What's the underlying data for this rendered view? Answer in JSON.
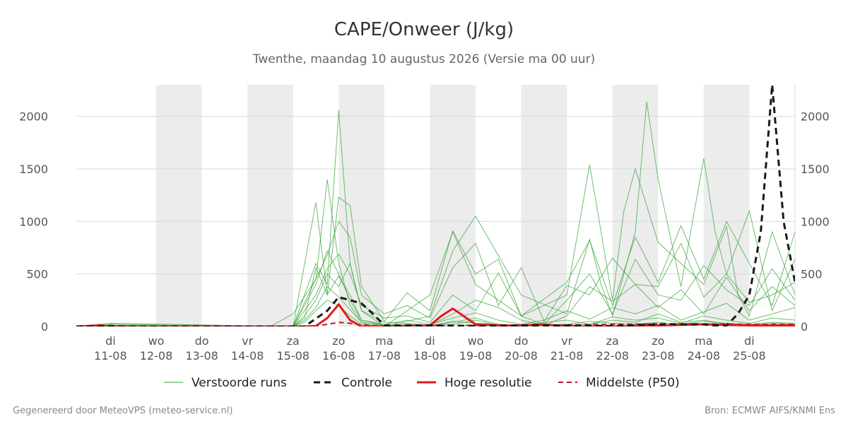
{
  "title": "CAPE/Onweer (J/kg)",
  "subtitle": "Twenthe, maandag 10 augustus 2026 (Versie ma 00 uur)",
  "footer_left": "Gegenereerd door MeteoVPS (meteo-service.nl)",
  "footer_right": "Bron: ECMWF AIFS/KNMI Ens",
  "colors": {
    "background": "#ffffff",
    "shade": "#ececec",
    "grid": "#d9d9d9",
    "ensemble": "#2ca02c",
    "control": "#1a1a1a",
    "hires": "#e31a1c",
    "median": "#b2182b"
  },
  "chart_data": {
    "type": "line",
    "title": "CAPE/Onweer (J/kg)",
    "xlabel": "",
    "ylabel": "",
    "x_unit": "days since 10-08 00 uur",
    "xlim": [
      -0.75,
      15.0
    ],
    "ylim": [
      0,
      2300
    ],
    "y_ticks": [
      0,
      500,
      1000,
      1500,
      2000
    ],
    "grid": true,
    "legend_position": "bottom",
    "x_ticks": [
      {
        "day": "di",
        "date": "11-08"
      },
      {
        "day": "wo",
        "date": "12-08"
      },
      {
        "day": "do",
        "date": "13-08"
      },
      {
        "day": "vr",
        "date": "14-08"
      },
      {
        "day": "za",
        "date": "15-08"
      },
      {
        "day": "zo",
        "date": "16-08"
      },
      {
        "day": "ma",
        "date": "17-08"
      },
      {
        "day": "di",
        "date": "18-08"
      },
      {
        "day": "wo",
        "date": "19-08"
      },
      {
        "day": "do",
        "date": "20-08"
      },
      {
        "day": "vr",
        "date": "21-08"
      },
      {
        "day": "za",
        "date": "22-08"
      },
      {
        "day": "zo",
        "date": "23-08"
      },
      {
        "day": "ma",
        "date": "24-08"
      },
      {
        "day": "di",
        "date": "25-08"
      }
    ],
    "shaded_day_ranges": [
      [
        1,
        2
      ],
      [
        3,
        4
      ],
      [
        5,
        6
      ],
      [
        7,
        8
      ],
      [
        9,
        10
      ],
      [
        11,
        12
      ],
      [
        13,
        14
      ]
    ],
    "legend": [
      {
        "label": "Verstoorde runs",
        "style": "thin-green"
      },
      {
        "label": "Controle",
        "style": "dashed-black"
      },
      {
        "label": "Hoge resolutie",
        "style": "solid-red"
      },
      {
        "label": "Middelste (P50)",
        "style": "dashed-darkred"
      }
    ],
    "series": [
      {
        "name": "Controle",
        "x": [
          -0.75,
          0.0,
          0.25,
          1.0,
          2.0,
          3.0,
          4.0,
          4.25,
          4.75,
          5.0,
          5.5,
          5.75,
          6.0,
          7.0,
          8.0,
          9.0,
          10.0,
          11.0,
          12.0,
          13.0,
          13.25,
          13.5,
          13.75,
          14.0,
          14.25,
          14.5,
          14.75,
          15.0
        ],
        "y": [
          0,
          5,
          0,
          0,
          0,
          0,
          0,
          0,
          150,
          280,
          220,
          120,
          10,
          10,
          5,
          10,
          10,
          5,
          20,
          20,
          10,
          10,
          120,
          300,
          900,
          2300,
          1000,
          420
        ]
      },
      {
        "name": "Hoge resolutie",
        "x": [
          -0.75,
          -0.5,
          -0.25,
          0.0,
          1.0,
          2.0,
          3.0,
          4.0,
          4.25,
          4.5,
          4.75,
          5.0,
          5.25,
          5.5,
          5.75,
          6.0,
          7.0,
          7.25,
          7.5,
          8.0,
          8.5,
          9.0,
          9.5,
          10.0,
          11.0,
          12.0,
          13.0,
          14.0,
          15.0
        ],
        "y": [
          0,
          5,
          10,
          0,
          0,
          0,
          0,
          0,
          0,
          5,
          80,
          210,
          60,
          0,
          0,
          0,
          10,
          100,
          170,
          20,
          10,
          10,
          20,
          0,
          0,
          10,
          20,
          10,
          10
        ]
      },
      {
        "name": "Middelste (P50)",
        "x": [
          -0.75,
          0.0,
          1.0,
          2.0,
          3.0,
          4.0,
          4.25,
          4.5,
          4.75,
          5.0,
          5.25,
          5.5,
          6.0,
          7.0,
          8.0,
          9.0,
          10.0,
          11.0,
          12.0,
          13.0,
          14.0,
          15.0
        ],
        "y": [
          0,
          5,
          0,
          0,
          0,
          0,
          0,
          5,
          20,
          40,
          30,
          15,
          5,
          10,
          10,
          10,
          15,
          20,
          25,
          25,
          20,
          20
        ]
      },
      {
        "name": "Verstoorde run A",
        "x": [
          -0.75,
          0.0,
          3.0,
          3.5,
          4.0,
          4.5,
          4.75,
          5.0,
          5.25,
          5.5,
          5.75,
          6.0,
          7.0,
          7.5,
          8.0,
          9.0,
          10.0,
          10.5,
          10.75,
          11.0,
          11.25,
          11.5,
          12.0,
          13.0,
          13.5,
          13.75,
          14.0,
          14.5,
          15.0
        ],
        "y": [
          0,
          0,
          0,
          0,
          120,
          450,
          1400,
          600,
          200,
          40,
          0,
          0,
          300,
          900,
          400,
          100,
          300,
          1540,
          900,
          250,
          1100,
          1500,
          800,
          400,
          950,
          300,
          100,
          900,
          300
        ]
      },
      {
        "name": "Verstoorde run B",
        "x": [
          -0.75,
          0.0,
          4.0,
          4.5,
          4.75,
          5.0,
          5.25,
          5.5,
          6.0,
          6.5,
          7.0,
          7.5,
          8.0,
          9.0,
          10.0,
          10.5,
          10.75,
          11.0,
          11.5,
          11.75,
          12.0,
          12.5,
          13.0,
          13.25,
          13.5,
          14.0,
          14.5,
          15.0
        ],
        "y": [
          0,
          30,
          0,
          600,
          400,
          2060,
          600,
          150,
          0,
          50,
          100,
          720,
          1050,
          300,
          120,
          830,
          400,
          100,
          900,
          2140,
          1400,
          380,
          1600,
          900,
          500,
          1100,
          150,
          640
        ]
      },
      {
        "name": "Verstoorde run C",
        "x": [
          -0.75,
          0.0,
          4.0,
          4.5,
          4.75,
          5.0,
          5.25,
          5.5,
          6.0,
          6.5,
          7.0,
          7.5,
          8.0,
          8.5,
          9.0,
          10.0,
          10.5,
          11.0,
          11.5,
          12.0,
          12.5,
          13.0,
          13.5,
          14.0,
          14.5,
          15.0
        ],
        "y": [
          0,
          10,
          0,
          1180,
          300,
          1230,
          1150,
          380,
          50,
          320,
          150,
          910,
          500,
          640,
          100,
          420,
          820,
          200,
          850,
          420,
          960,
          450,
          1000,
          600,
          200,
          900
        ]
      },
      {
        "name": "Verstoorde run D",
        "x": [
          -0.75,
          0.0,
          4.0,
          4.5,
          4.75,
          5.0,
          5.25,
          5.5,
          6.0,
          6.5,
          7.0,
          7.5,
          8.0,
          8.5,
          9.0,
          9.5,
          10.0,
          10.5,
          11.0,
          11.5,
          12.0,
          12.5,
          13.0,
          13.5,
          14.0,
          14.5,
          15.0
        ],
        "y": [
          0,
          0,
          0,
          450,
          680,
          1000,
          850,
          300,
          120,
          200,
          80,
          560,
          790,
          200,
          560,
          50,
          390,
          300,
          650,
          400,
          380,
          790,
          280,
          500,
          230,
          300,
          420
        ]
      },
      {
        "name": "Verstoorde run E",
        "x": [
          -0.75,
          0.0,
          4.0,
          4.5,
          4.75,
          5.0,
          5.25,
          5.5,
          6.0,
          6.5,
          7.0,
          7.5,
          8.0,
          8.5,
          9.0,
          9.5,
          10.0,
          10.5,
          11.0,
          11.5,
          12.0,
          12.5,
          13.0,
          13.5,
          14.0,
          14.5,
          15.0
        ],
        "y": [
          0,
          5,
          0,
          300,
          550,
          690,
          500,
          200,
          80,
          100,
          40,
          300,
          150,
          510,
          100,
          20,
          250,
          500,
          120,
          640,
          300,
          250,
          580,
          350,
          200,
          550,
          250
        ]
      },
      {
        "name": "Verstoorde run F",
        "x": [
          -0.75,
          0.0,
          4.0,
          4.25,
          4.5,
          4.75,
          5.0,
          5.25,
          5.5,
          6.0,
          6.5,
          7.0,
          7.5,
          8.0,
          8.5,
          9.0,
          9.5,
          10.0,
          10.5,
          11.0,
          11.5,
          12.0,
          12.5,
          13.0,
          13.5,
          14.0,
          14.5,
          15.0
        ],
        "y": [
          0,
          0,
          0,
          100,
          250,
          500,
          380,
          600,
          150,
          40,
          30,
          10,
          120,
          250,
          180,
          60,
          10,
          100,
          380,
          240,
          400,
          180,
          350,
          120,
          470,
          150,
          380,
          200
        ]
      },
      {
        "name": "Verstoorde run G",
        "x": [
          -0.75,
          0.0,
          4.0,
          4.25,
          4.5,
          4.75,
          5.0,
          5.25,
          5.5,
          6.0,
          6.5,
          7.0,
          7.5,
          8.0,
          8.5,
          9.0,
          9.5,
          10.0,
          10.5,
          11.0,
          11.5,
          12.0,
          12.5,
          13.0,
          13.5,
          14.0,
          14.5,
          15.0
        ],
        "y": [
          0,
          0,
          0,
          80,
          560,
          300,
          480,
          300,
          60,
          20,
          60,
          20,
          80,
          130,
          60,
          20,
          60,
          150,
          70,
          180,
          120,
          200,
          60,
          140,
          220,
          60,
          120,
          180
        ]
      },
      {
        "name": "Verstoorde run H",
        "x": [
          -0.75,
          0.0,
          4.0,
          4.25,
          4.5,
          4.75,
          5.0,
          5.25,
          5.5,
          6.0,
          6.5,
          7.0,
          7.5,
          8.0,
          8.5,
          9.0,
          9.5,
          10.0,
          10.5,
          11.0,
          11.5,
          12.0,
          12.5,
          13.0,
          13.5,
          14.0,
          14.5,
          15.0
        ],
        "y": [
          0,
          20,
          0,
          60,
          180,
          380,
          280,
          160,
          40,
          10,
          20,
          10,
          40,
          80,
          20,
          10,
          40,
          60,
          20,
          90,
          60,
          80,
          30,
          100,
          60,
          30,
          80,
          60
        ]
      },
      {
        "name": "Verstoorde run I",
        "x": [
          -0.75,
          0.0,
          4.0,
          4.25,
          4.5,
          4.75,
          5.0,
          5.25,
          5.5,
          6.0,
          6.5,
          7.0,
          7.5,
          8.0,
          8.5,
          9.0,
          9.5,
          10.0,
          10.5,
          11.0,
          11.5,
          12.0,
          12.5,
          13.0,
          13.5,
          14.0,
          14.5,
          15.0
        ],
        "y": [
          0,
          0,
          0,
          200,
          400,
          720,
          500,
          250,
          60,
          10,
          10,
          5,
          50,
          30,
          20,
          10,
          10,
          20,
          50,
          30,
          20,
          40,
          20,
          50,
          30,
          20,
          40,
          30
        ]
      },
      {
        "name": "Verstoorde run J",
        "x": [
          -0.75,
          0.0,
          4.0,
          4.25,
          4.5,
          4.75,
          5.0,
          5.25,
          5.5,
          6.0,
          6.5,
          7.0,
          7.5,
          8.0,
          8.5,
          9.0,
          9.5,
          10.0,
          10.5,
          11.0,
          11.5,
          12.0,
          12.5,
          13.0,
          13.5,
          14.0,
          14.5,
          15.0
        ],
        "y": [
          0,
          10,
          0,
          40,
          150,
          250,
          200,
          100,
          20,
          5,
          5,
          5,
          20,
          60,
          10,
          5,
          5,
          10,
          20,
          60,
          40,
          120,
          40,
          60,
          20,
          10,
          30,
          20
        ]
      }
    ]
  }
}
